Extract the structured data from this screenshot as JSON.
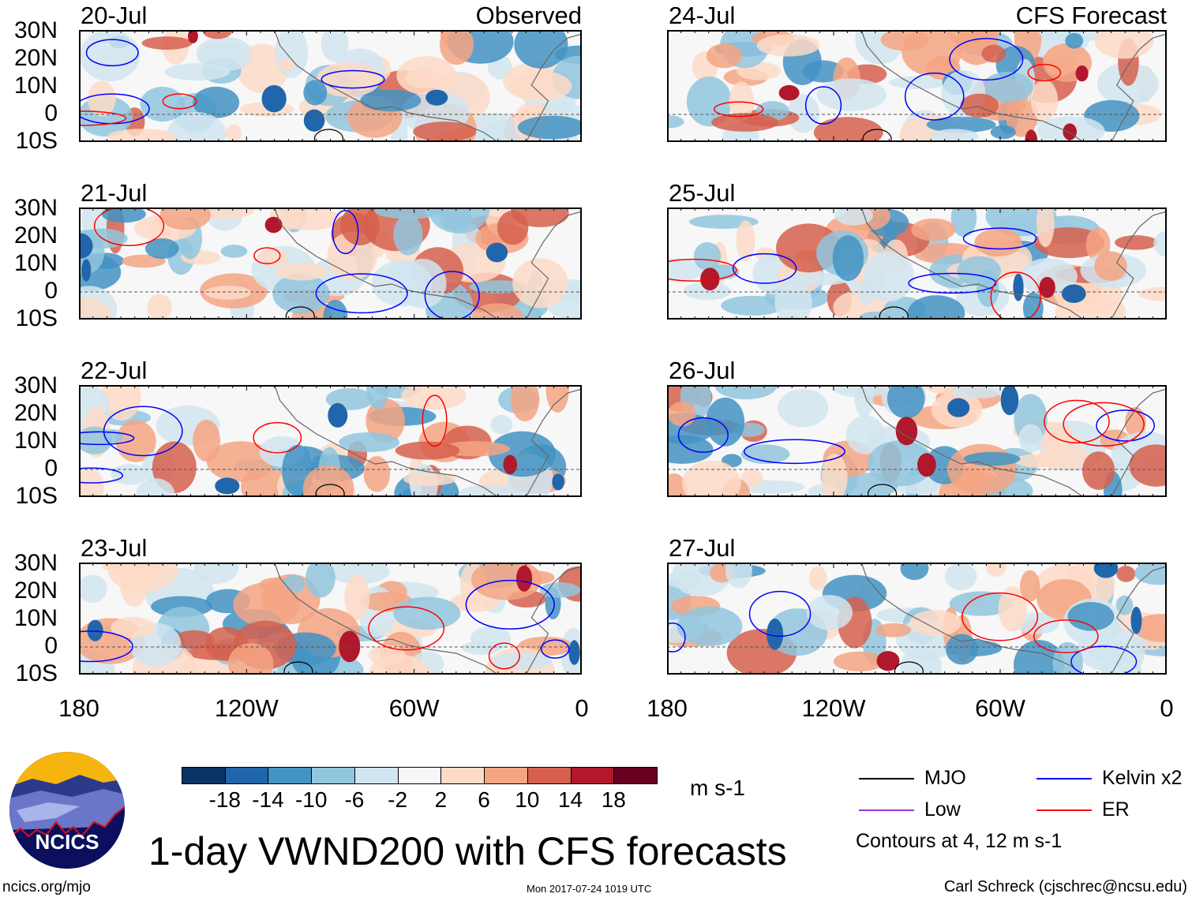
{
  "columns": [
    {
      "header": "Observed",
      "panels": [
        "20-Jul",
        "21-Jul",
        "22-Jul",
        "23-Jul"
      ]
    },
    {
      "header": "CFS Forecast",
      "panels": [
        "24-Jul",
        "25-Jul",
        "26-Jul",
        "27-Jul"
      ]
    }
  ],
  "lat_labels": [
    "30N",
    "20N",
    "10N",
    "0",
    "10S"
  ],
  "lon_labels": [
    "180",
    "120W",
    "60W",
    "0"
  ],
  "colorbar": {
    "colors": [
      "#0a3366",
      "#2166ac",
      "#4393c3",
      "#92c5de",
      "#d1e5f0",
      "#f7f7f7",
      "#fddbc7",
      "#f4a582",
      "#d6604d",
      "#b2182b",
      "#67001f"
    ],
    "labels": [
      "-18",
      "-14",
      "-10",
      "-6",
      "-2",
      "2",
      "6",
      "10",
      "14",
      "18"
    ],
    "units": "m s-1"
  },
  "legend": {
    "items": [
      {
        "label": "MJO",
        "color": "#000000"
      },
      {
        "label": "Kelvin x2",
        "color": "#0000ff"
      },
      {
        "label": "Low",
        "color": "#9933dd"
      },
      {
        "label": "ER",
        "color": "#ff0000"
      }
    ],
    "note": "Contours at 4, 12 m s-1"
  },
  "title": "1-day VWND200 with CFS forecasts",
  "logo_text": "NCICS",
  "footer": {
    "url": "ncics.org/mjo",
    "timestamp": "Mon 2017-07-24 1019 UTC",
    "credit": "Carl Schreck (cjschrec@ncsu.edu)"
  }
}
